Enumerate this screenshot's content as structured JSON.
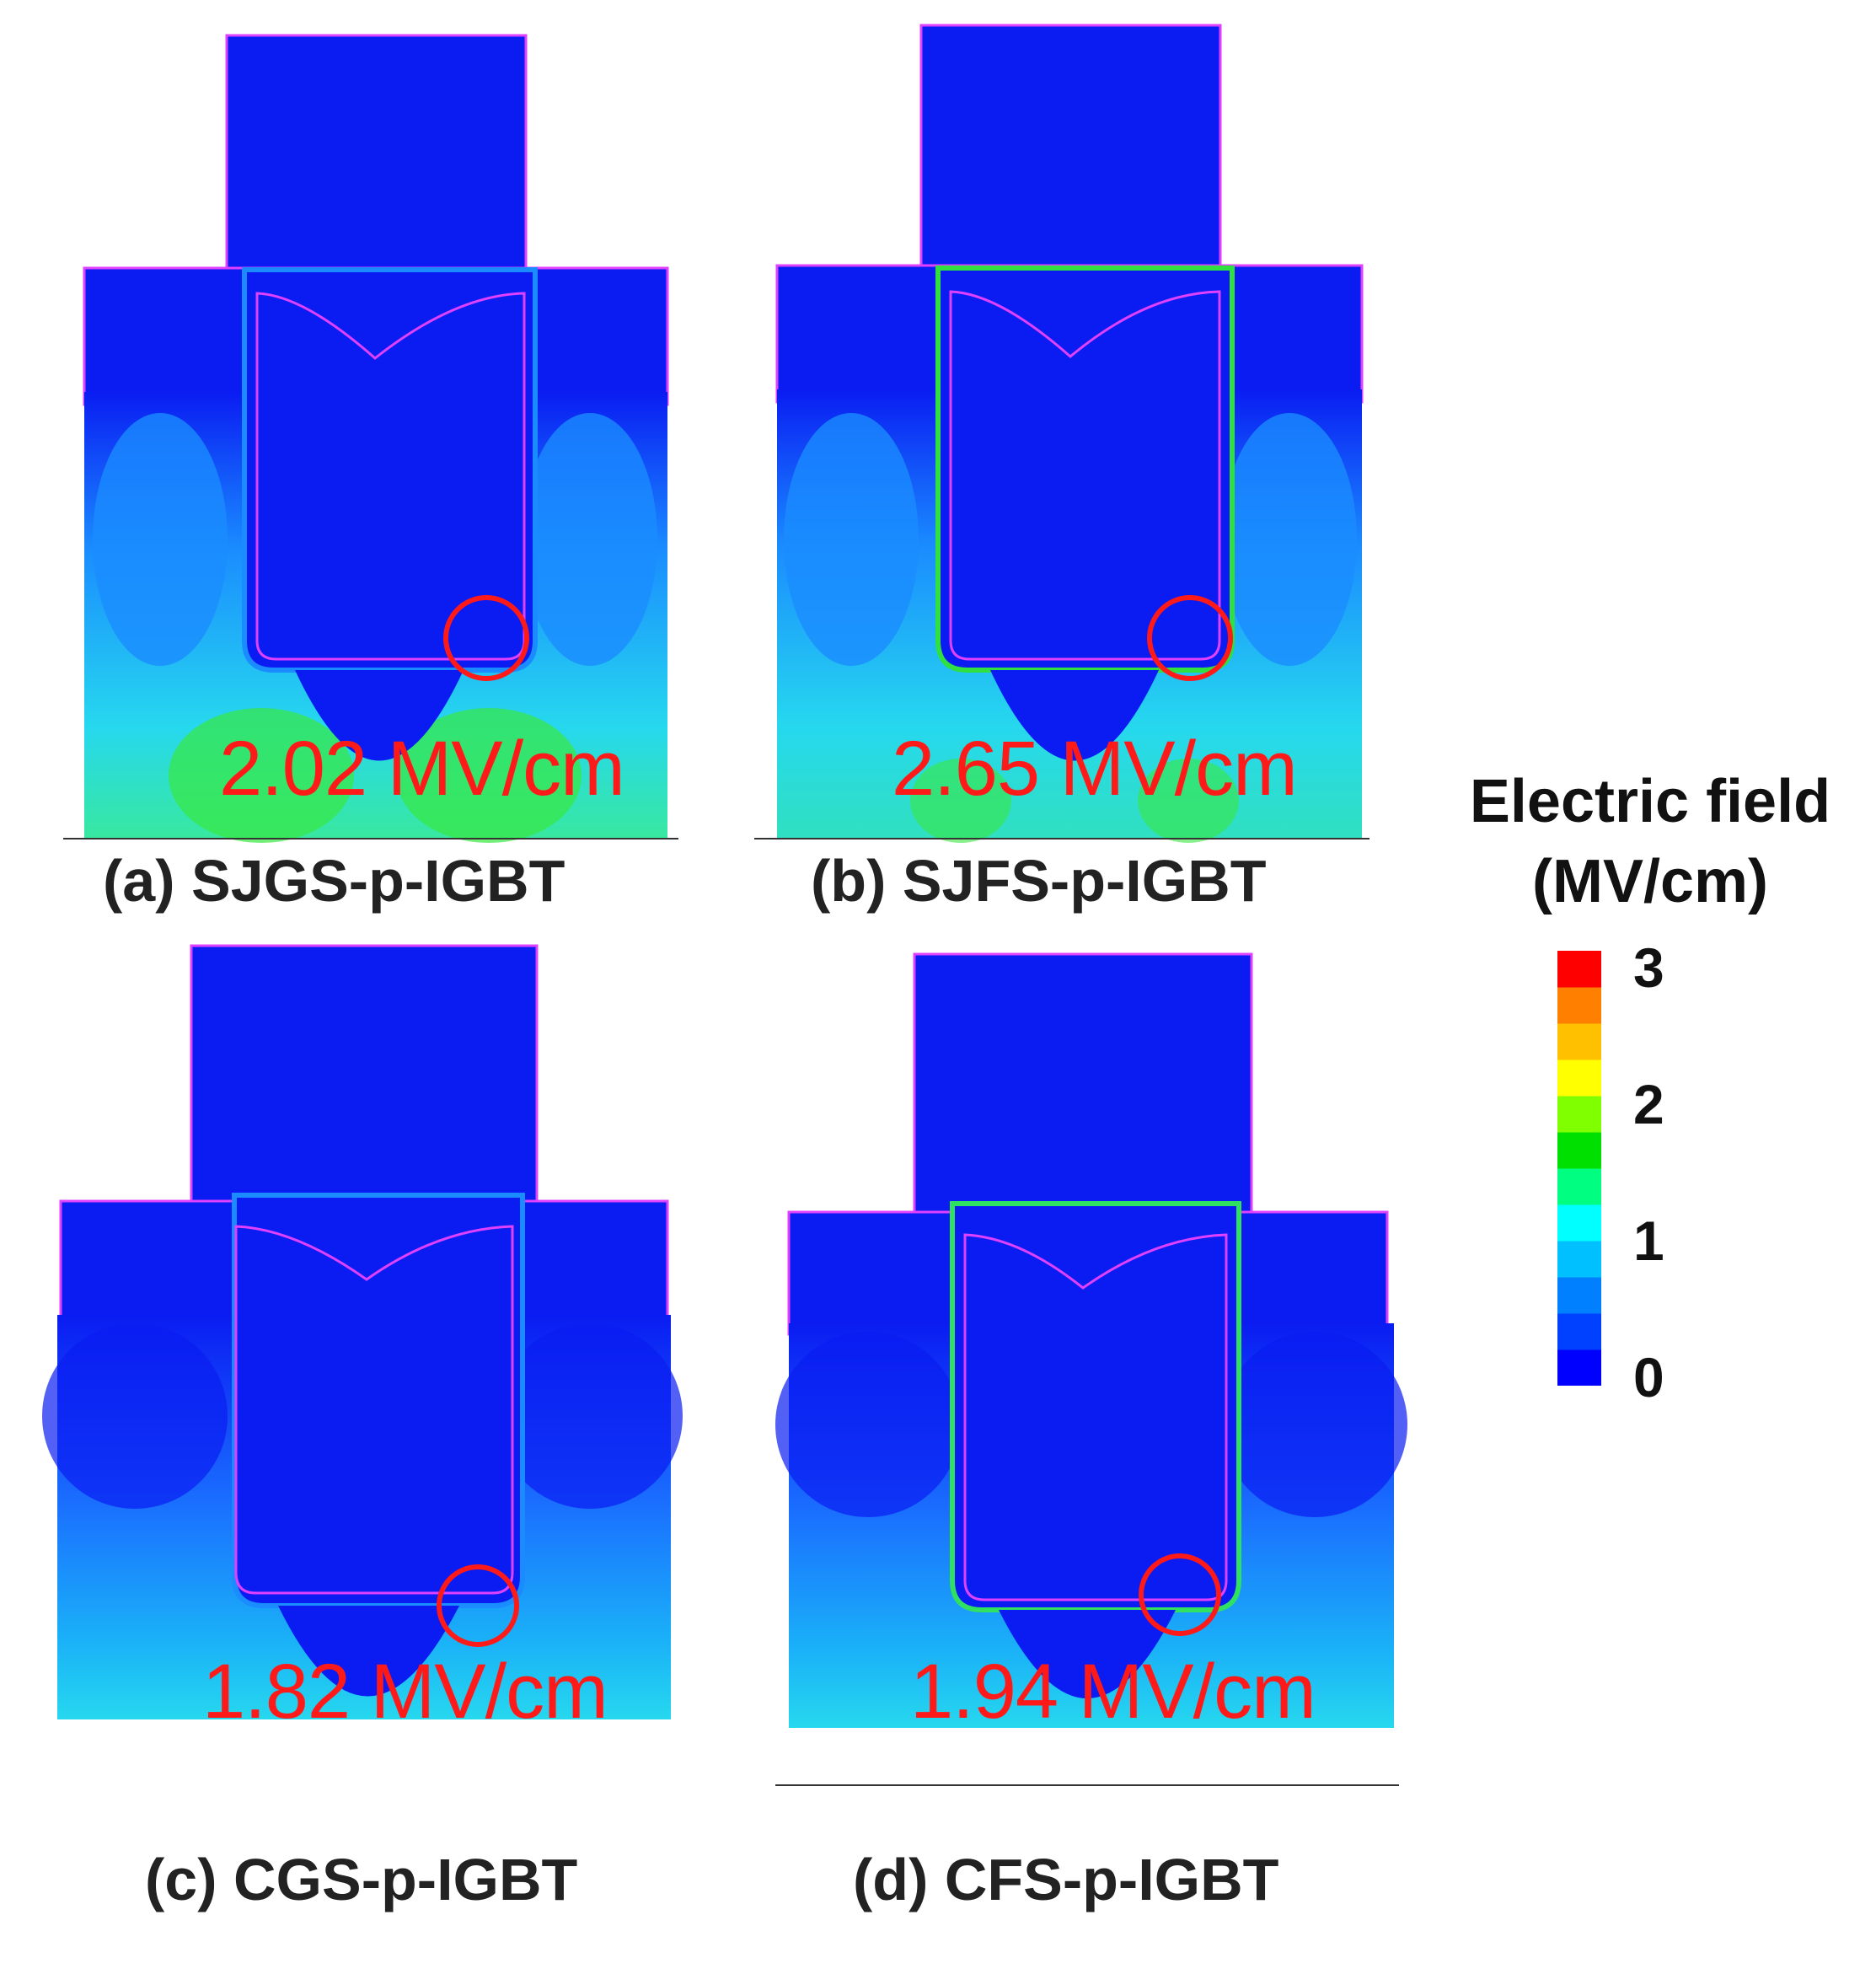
{
  "panels": [
    {
      "caption": "(a) SJGS-p-IGBT",
      "peak_field": "2.02 MV/cm"
    },
    {
      "caption": "(b) SJFS-p-IGBT",
      "peak_field": "2.65 MV/cm"
    },
    {
      "caption": "(c) CGS-p-IGBT",
      "peak_field": "1.82 MV/cm"
    },
    {
      "caption": "(d) CFS-p-IGBT",
      "peak_field": "1.94 MV/cm"
    }
  ],
  "legend": {
    "title_line1": "Electric field",
    "title_line2": "(MV/cm)",
    "ticks": [
      "3",
      "2",
      "1",
      "0"
    ],
    "colors": [
      "#0000ff",
      "#0040ff",
      "#0080ff",
      "#00c0ff",
      "#00ffff",
      "#00ff80",
      "#00e000",
      "#80ff00",
      "#ffff00",
      "#ffc000",
      "#ff8000",
      "#ff0000"
    ]
  },
  "colors": {
    "base": "#0a1cf2",
    "mid": "#1a8cff",
    "high": "#28e8e0",
    "peak": "#30e040",
    "outline": "#e040ff",
    "marker": "#ff1a1a"
  }
}
